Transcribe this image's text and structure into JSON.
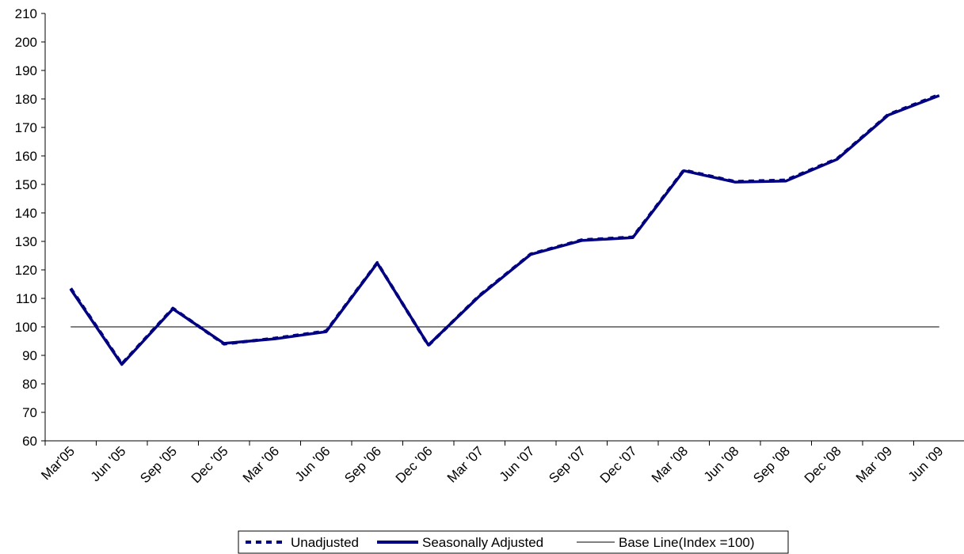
{
  "chart_data": {
    "type": "line",
    "title": "",
    "xlabel": "",
    "ylabel": "",
    "ylim": [
      60,
      210
    ],
    "yticks": [
      60,
      70,
      80,
      90,
      100,
      110,
      120,
      130,
      140,
      150,
      160,
      170,
      180,
      190,
      200,
      210
    ],
    "grid": false,
    "legend_position": "bottom",
    "categories": [
      "Mar'05",
      "Jun '05",
      "Sep '05",
      "Dec '05",
      "Mar '06",
      "Jun '06",
      "Sep '06",
      "Dec '06",
      "Mar '07",
      "Jun '07",
      "Sep '07",
      "Dec '07",
      "Mar '08",
      "Jun '08",
      "Sep '08",
      "Dec '08",
      "Mar '09",
      "Jun '09"
    ],
    "series": [
      {
        "name": "Unadjusted",
        "style": "dashed",
        "color": "#000080",
        "values": [
          113.5,
          87,
          106.5,
          94,
          96,
          98.5,
          122.5,
          93.5,
          111,
          125.5,
          130.5,
          131.5,
          155,
          151,
          151.5,
          159,
          174.5,
          181.5
        ]
      },
      {
        "name": "Seasonally Adjusted",
        "style": "solid",
        "color": "#000080",
        "values": [
          113.2,
          86.8,
          106.3,
          94.2,
          95.8,
          98.3,
          122.4,
          93.6,
          110.8,
          125.4,
          130.3,
          131.3,
          154.8,
          150.8,
          151.2,
          158.8,
          174.3,
          181.2
        ]
      },
      {
        "name": "Base Line(Index =100)",
        "style": "thin",
        "color": "#000000",
        "values": [
          100,
          100,
          100,
          100,
          100,
          100,
          100,
          100,
          100,
          100,
          100,
          100,
          100,
          100,
          100,
          100,
          100,
          100
        ]
      }
    ]
  }
}
